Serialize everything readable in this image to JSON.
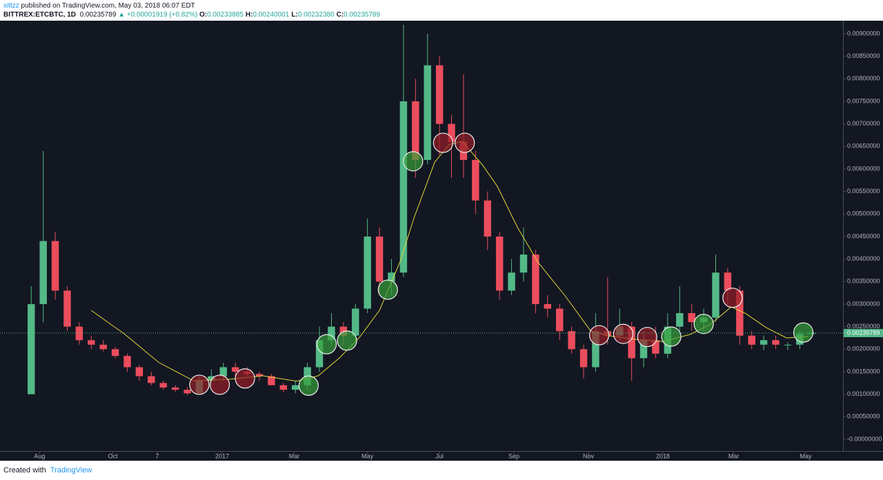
{
  "header": {
    "author": "xittzz",
    "published": " published on TradingView.com, May 03, 2018 06:07 EDT",
    "symbol": "BITTREX:ETCBTC, 1D",
    "last": "0.00235789",
    "change": "▲ +0.00001919 (+0.82%)",
    "ohlc": [
      {
        "key": "O:",
        "value": "0.00233885"
      },
      {
        "key": "H:",
        "value": "0.00240001"
      },
      {
        "key": "L:",
        "value": "0.00232380"
      },
      {
        "key": "C:",
        "value": "0.00235789"
      }
    ]
  },
  "chart_data": {
    "type": "candlestick",
    "x": [
      0,
      10,
      20,
      30,
      40,
      50,
      60,
      70,
      80,
      90,
      100,
      110,
      120,
      130,
      140,
      150,
      160,
      170,
      180,
      190,
      200,
      210,
      220,
      230,
      240,
      250,
      260,
      270,
      280,
      290,
      300,
      310,
      320,
      330,
      340,
      350,
      360,
      370,
      380,
      390,
      400,
      410,
      420,
      430,
      440,
      450,
      460,
      470,
      480,
      490,
      500,
      510,
      520,
      530,
      540,
      550,
      560,
      570,
      580,
      590,
      600,
      610,
      620,
      630,
      640,
      650
    ],
    "open": [
      0.001,
      0.003,
      0.0044,
      0.0033,
      0.0025,
      0.0022,
      0.0021,
      0.002,
      0.00185,
      0.0016,
      0.0014,
      0.00125,
      0.00115,
      0.0011,
      0.00102,
      0.0013,
      0.0014,
      0.0016,
      0.0015,
      0.00145,
      0.0014,
      0.0012,
      0.0011,
      0.0012,
      0.0016,
      0.0022,
      0.0025,
      0.0023,
      0.0029,
      0.0045,
      0.0035,
      0.0037,
      0.0075,
      0.0062,
      0.0083,
      0.007,
      0.0066,
      0.0062,
      0.0053,
      0.0045,
      0.0033,
      0.0037,
      0.0041,
      0.003,
      0.0029,
      0.0024,
      0.002,
      0.0016,
      0.0024,
      0.0023,
      0.0025,
      0.0018,
      0.0022,
      0.0019,
      0.0025,
      0.0028,
      0.0026,
      0.0027,
      0.0037,
      0.0033,
      0.0023,
      0.0021,
      0.0022,
      0.0021,
      0.0021,
      0.00234
    ],
    "high": [
      0.0034,
      0.0064,
      0.0046,
      0.0034,
      0.0026,
      0.0023,
      0.0022,
      0.00205,
      0.0019,
      0.00165,
      0.0015,
      0.0013,
      0.0012,
      0.00115,
      0.0014,
      0.00155,
      0.0017,
      0.0017,
      0.0016,
      0.0015,
      0.00145,
      0.00125,
      0.0013,
      0.0017,
      0.0025,
      0.0028,
      0.0026,
      0.003,
      0.0049,
      0.0047,
      0.004,
      0.0092,
      0.008,
      0.009,
      0.0085,
      0.0072,
      0.0081,
      0.0064,
      0.0055,
      0.0046,
      0.004,
      0.0047,
      0.0042,
      0.0032,
      0.003,
      0.0025,
      0.0021,
      0.0028,
      0.0036,
      0.0029,
      0.0026,
      0.0024,
      0.0025,
      0.0028,
      0.0034,
      0.003,
      0.0029,
      0.0041,
      0.0038,
      0.0034,
      0.0024,
      0.0023,
      0.0023,
      0.00215,
      0.0024,
      0.0024
    ],
    "low": [
      0.001,
      0.0026,
      0.0031,
      0.0024,
      0.0021,
      0.002,
      0.00195,
      0.0018,
      0.0015,
      0.0013,
      0.0012,
      0.0011,
      0.00105,
      0.00098,
      0.001,
      0.0012,
      0.0013,
      0.0014,
      0.0014,
      0.0013,
      0.0012,
      0.00105,
      0.00102,
      0.0011,
      0.0015,
      0.0021,
      0.0021,
      0.0022,
      0.0028,
      0.0032,
      0.0032,
      0.0036,
      0.0058,
      0.0061,
      0.0063,
      0.0058,
      0.0058,
      0.005,
      0.0042,
      0.0031,
      0.0032,
      0.0035,
      0.0028,
      0.0027,
      0.0022,
      0.0019,
      0.00135,
      0.0015,
      0.0021,
      0.0022,
      0.0013,
      0.0016,
      0.0018,
      0.0018,
      0.0024,
      0.0024,
      0.0024,
      0.0026,
      0.003,
      0.0021,
      0.002,
      0.00198,
      0.002,
      0.00198,
      0.002,
      0.00232
    ],
    "close": [
      0.003,
      0.0044,
      0.0033,
      0.0025,
      0.0022,
      0.0021,
      0.002,
      0.00185,
      0.0016,
      0.0014,
      0.00125,
      0.00115,
      0.0011,
      0.00102,
      0.0013,
      0.0014,
      0.0016,
      0.0015,
      0.00145,
      0.0014,
      0.0012,
      0.0011,
      0.0012,
      0.0016,
      0.0022,
      0.0025,
      0.0023,
      0.0029,
      0.0045,
      0.0035,
      0.0037,
      0.0075,
      0.0062,
      0.0083,
      0.007,
      0.0066,
      0.0062,
      0.0053,
      0.0045,
      0.0033,
      0.0037,
      0.0041,
      0.003,
      0.0029,
      0.0024,
      0.002,
      0.0016,
      0.0024,
      0.0023,
      0.0025,
      0.0018,
      0.0022,
      0.0019,
      0.0025,
      0.0028,
      0.0026,
      0.0027,
      0.0037,
      0.0033,
      0.0023,
      0.0021,
      0.0022,
      0.0021,
      0.0021,
      0.00234,
      0.00236
    ],
    "up_color": "#53b987",
    "down_color": "#eb4d5c",
    "moving_average": {
      "color": "#e6d93a",
      "x": [
        50,
        78,
        106,
        135,
        164,
        193,
        221,
        239,
        256,
        273,
        290,
        307,
        319,
        336,
        348,
        359,
        376,
        388,
        405,
        422,
        445,
        466,
        480,
        503,
        526,
        549,
        566,
        583,
        595,
        612,
        629,
        647
      ],
      "values": [
        0.00286,
        0.00233,
        0.00171,
        0.0013,
        0.00133,
        0.00141,
        0.00129,
        0.00141,
        0.00179,
        0.00225,
        0.00286,
        0.00393,
        0.00493,
        0.00615,
        0.00654,
        0.00661,
        0.00608,
        0.00562,
        0.0047,
        0.00393,
        0.00317,
        0.0024,
        0.0023,
        0.00222,
        0.00217,
        0.00233,
        0.00256,
        0.00294,
        0.00279,
        0.00248,
        0.00225,
        0.00228
      ]
    },
    "markers": [
      {
        "x": 140,
        "y": 0.00121,
        "color": "red"
      },
      {
        "x": 157,
        "y": 0.00121,
        "color": "red"
      },
      {
        "x": 178,
        "y": 0.00135,
        "color": "red"
      },
      {
        "x": 231,
        "y": 0.00119,
        "color": "green"
      },
      {
        "x": 246,
        "y": 0.00211,
        "color": "green"
      },
      {
        "x": 263,
        "y": 0.00219,
        "color": "green"
      },
      {
        "x": 297,
        "y": 0.00332,
        "color": "green"
      },
      {
        "x": 318,
        "y": 0.00617,
        "color": "green"
      },
      {
        "x": 343,
        "y": 0.00658,
        "color": "red"
      },
      {
        "x": 361,
        "y": 0.00658,
        "color": "red"
      },
      {
        "x": 473,
        "y": 0.00231,
        "color": "red"
      },
      {
        "x": 493,
        "y": 0.00234,
        "color": "red"
      },
      {
        "x": 513,
        "y": 0.00227,
        "color": "red"
      },
      {
        "x": 533,
        "y": 0.00228,
        "color": "green"
      },
      {
        "x": 560,
        "y": 0.00256,
        "color": "green"
      },
      {
        "x": 584,
        "y": 0.00314,
        "color": "red"
      },
      {
        "x": 643,
        "y": 0.00237,
        "color": "green"
      }
    ],
    "last_price": 0.00235789,
    "last_color": "#53b987",
    "xlim": [
      -26,
      676
    ],
    "xticks": [
      {
        "value": 7,
        "label": "Aug"
      },
      {
        "value": 68,
        "label": "Oct"
      },
      {
        "value": 105,
        "label": "7"
      },
      {
        "value": 159,
        "label": "2017"
      },
      {
        "value": 219,
        "label": "Mar"
      },
      {
        "value": 280,
        "label": "May"
      },
      {
        "value": 340,
        "label": "Jul"
      },
      {
        "value": 402,
        "label": "Sep"
      },
      {
        "value": 464,
        "label": "Nov"
      },
      {
        "value": 526,
        "label": "2018"
      },
      {
        "value": 585,
        "label": "Mar"
      },
      {
        "value": 645,
        "label": "May"
      }
    ],
    "ylim": [
      -0.000245,
      0.00929
    ],
    "yticks": [
      {
        "value": 0.009,
        "label": "0.00900000"
      },
      {
        "value": 0.0085,
        "label": "0.00850000"
      },
      {
        "value": 0.008,
        "label": "0.00800000"
      },
      {
        "value": 0.0075,
        "label": "0.00750000"
      },
      {
        "value": 0.007,
        "label": "0.00700000"
      },
      {
        "value": 0.0065,
        "label": "0.00650000"
      },
      {
        "value": 0.006,
        "label": "0.00600000"
      },
      {
        "value": 0.0055,
        "label": "0.00550000"
      },
      {
        "value": 0.005,
        "label": "0.00500000"
      },
      {
        "value": 0.0045,
        "label": "0.00450000"
      },
      {
        "value": 0.004,
        "label": "0.00400000"
      },
      {
        "value": 0.0035,
        "label": "0.00350000"
      },
      {
        "value": 0.003,
        "label": "0.00300000"
      },
      {
        "value": 0.0025,
        "label": "0.00250000"
      },
      {
        "value": 0.002,
        "label": "0.00200000"
      },
      {
        "value": 0.0015,
        "label": "0.00150000"
      },
      {
        "value": 0.001,
        "label": "0.00100000"
      },
      {
        "value": 0.0005,
        "label": "0.00050000"
      },
      {
        "value": 0,
        "label": "-0.00000000"
      }
    ],
    "grid": false
  },
  "footer": {
    "created": "Created with",
    "brand": "TradingView"
  }
}
